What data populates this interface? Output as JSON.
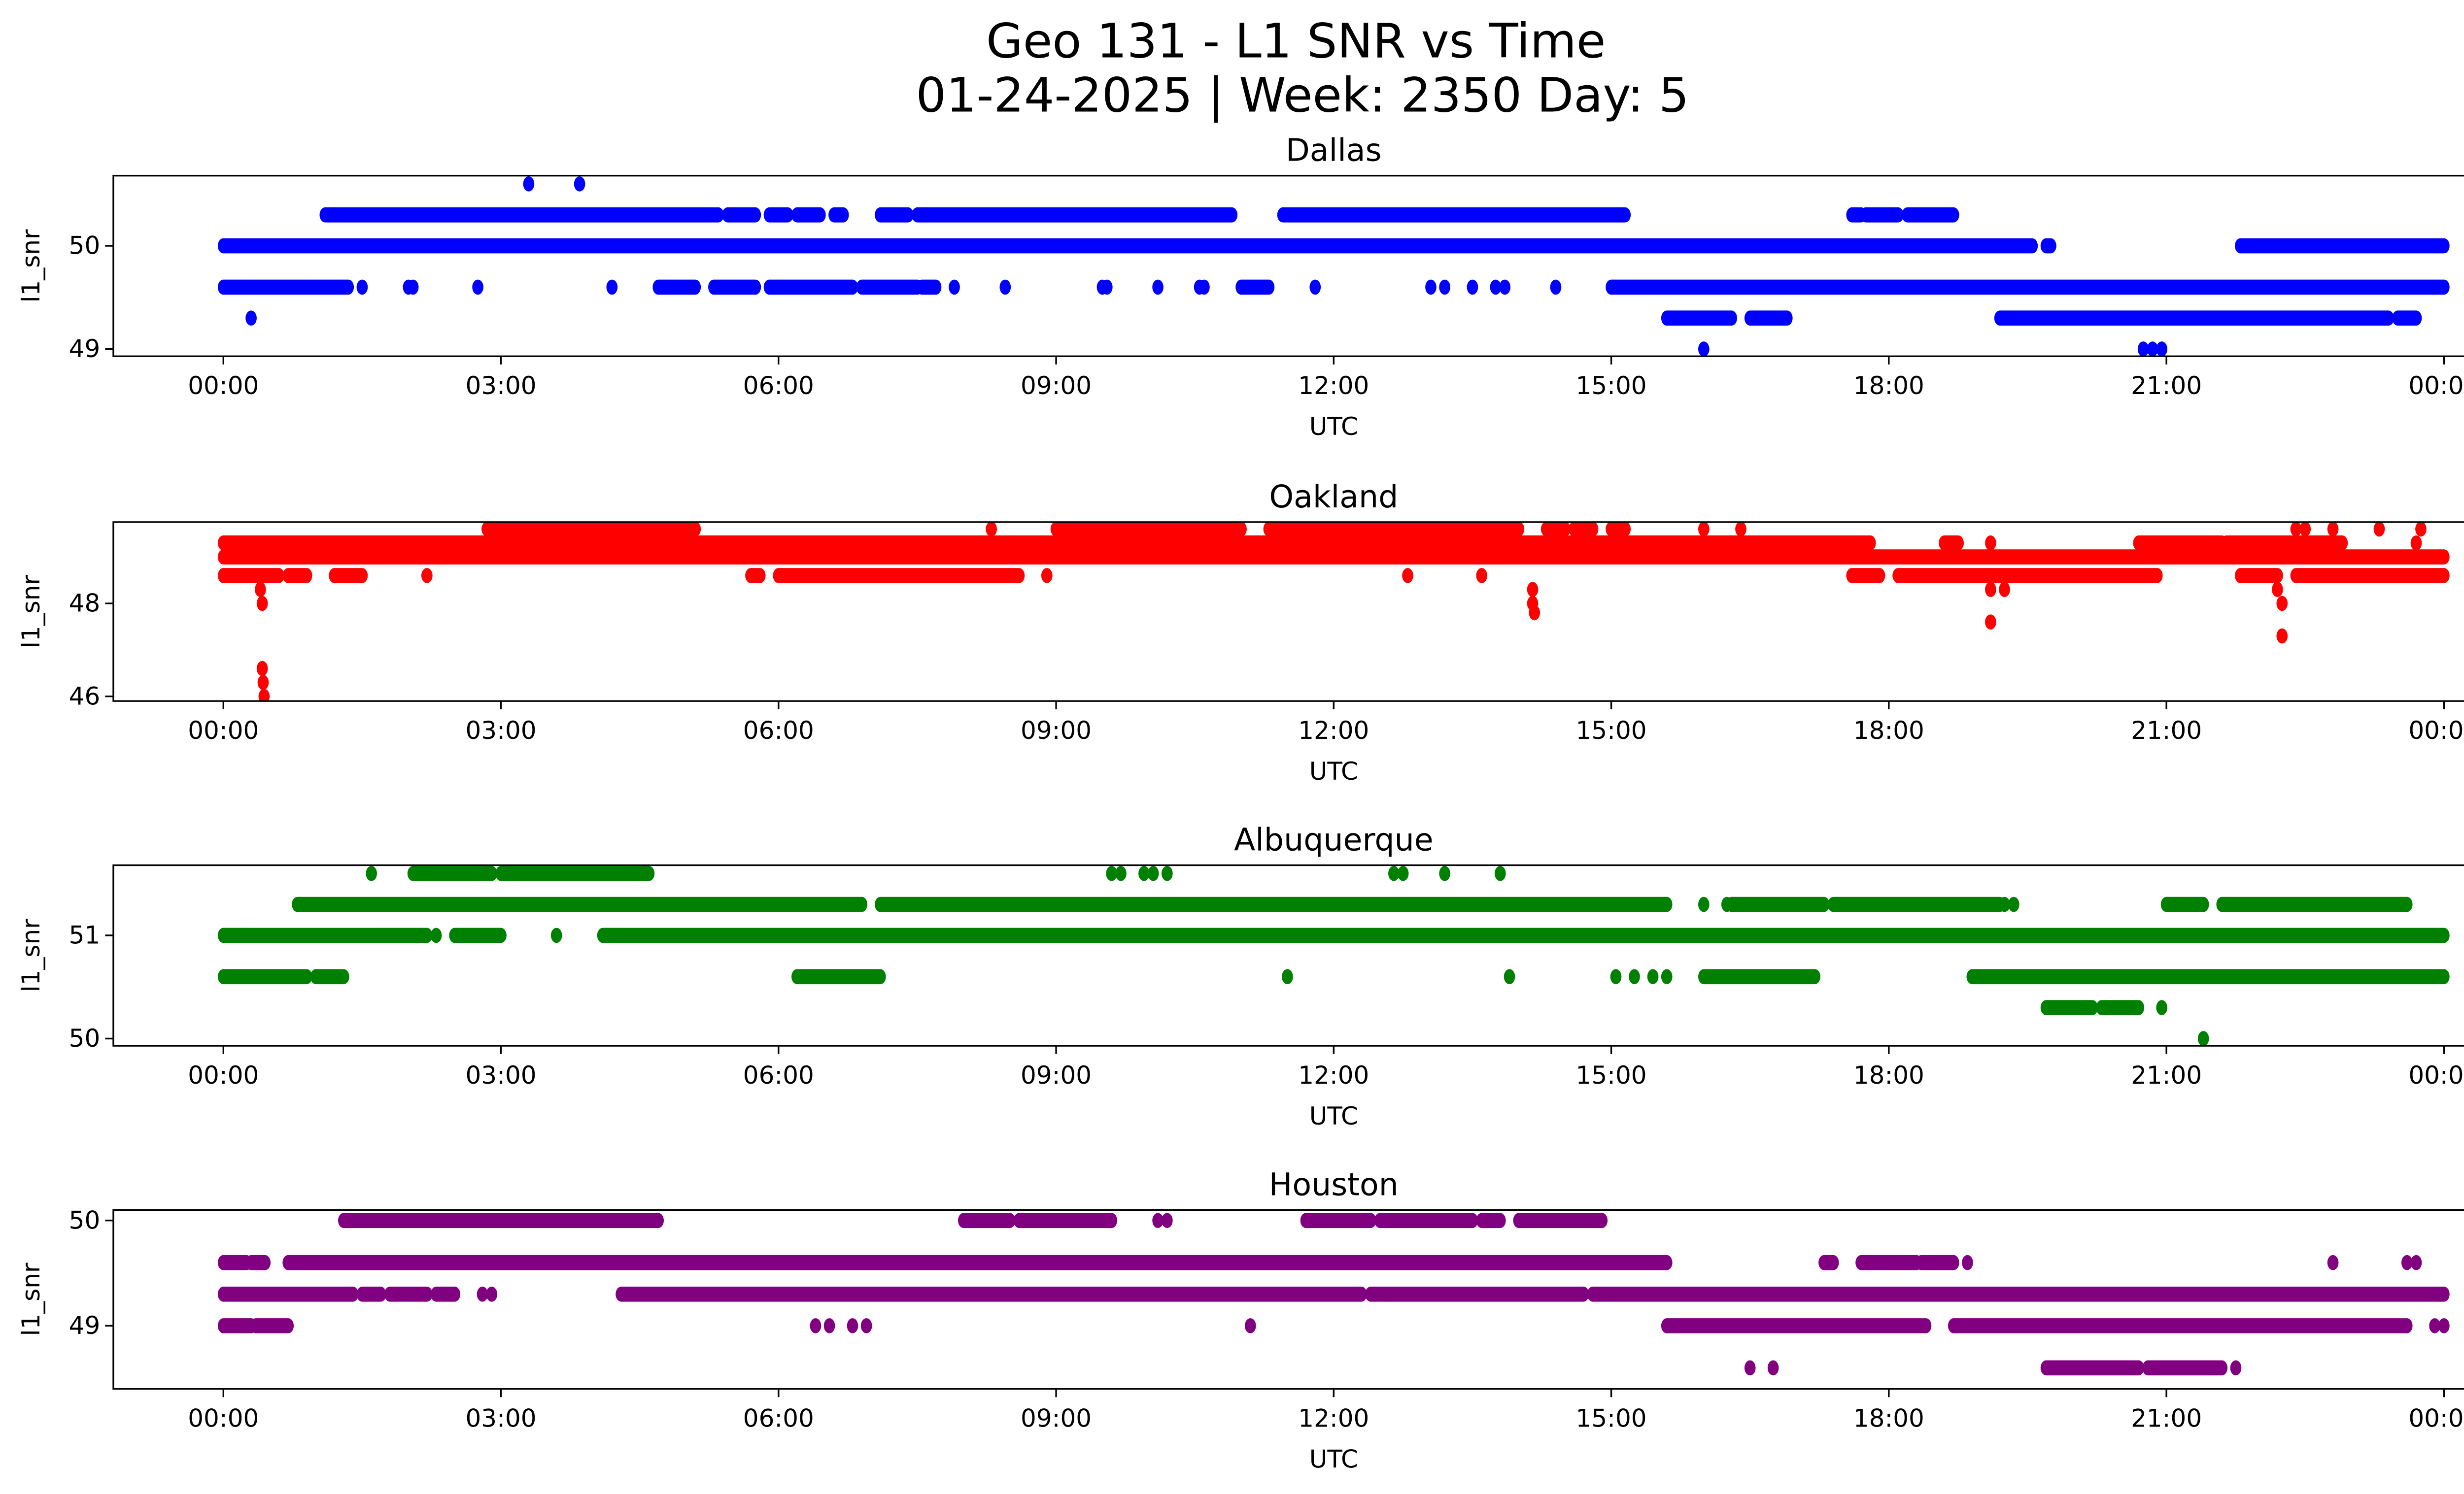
{
  "chart_data": {
    "type": "scatter",
    "title": "Geo 131 - L1 SNR vs Time",
    "subtitle": "01-24-2025 | Week: 2350 Day: 5",
    "x_tick_labels": [
      "00:00",
      "03:00",
      "06:00",
      "09:00",
      "12:00",
      "15:00",
      "18:00",
      "21:00",
      "00:00"
    ],
    "x_ticks_hours": [
      0,
      3,
      6,
      9,
      12,
      15,
      18,
      21,
      24
    ],
    "x_range_hours": [
      -1.2,
      25.2
    ],
    "grid": false,
    "legend": "none",
    "note": "Dense scatter; data approximated as runs of consecutive samples [start_hour, end_hour] at each quantized SNR level plus isolated points [hour, snr].",
    "panels": [
      {
        "name": "Dallas",
        "xlabel": "UTC",
        "ylabel": "l1_snr",
        "color": "#0000ff",
        "ylim": [
          48.93,
          50.68
        ],
        "y_ticks": [
          49,
          50
        ],
        "y_tick_labels": [
          "49",
          "50"
        ],
        "runs": [
          {
            "y": 50.6,
            "spans": []
          },
          {
            "y": 50.3,
            "spans": [
              [
                1.1,
                5.35
              ],
              [
                5.45,
                5.75
              ],
              [
                5.9,
                6.1
              ],
              [
                6.2,
                6.45
              ],
              [
                6.6,
                6.7
              ],
              [
                7.1,
                7.4
              ],
              [
                7.5,
                10.9
              ],
              [
                11.45,
                15.15
              ],
              [
                17.6,
                17.7
              ],
              [
                17.75,
                18.1
              ],
              [
                18.2,
                18.7
              ]
            ]
          },
          {
            "y": 50.0,
            "spans": [
              [
                0.0,
                19.55
              ],
              [
                19.7,
                19.75
              ],
              [
                21.8,
                24.0
              ]
            ]
          },
          {
            "y": 49.6,
            "spans": [
              [
                0.0,
                1.35
              ],
              [
                4.7,
                5.1
              ],
              [
                5.3,
                5.75
              ],
              [
                5.9,
                6.8
              ],
              [
                6.9,
                7.5
              ],
              [
                7.55,
                7.7
              ],
              [
                11.0,
                11.3
              ],
              [
                15.0,
                24.0
              ]
            ]
          },
          {
            "y": 49.3,
            "spans": [
              [
                15.6,
                16.3
              ],
              [
                16.5,
                16.9
              ],
              [
                19.2,
                23.4
              ],
              [
                23.5,
                23.7
              ]
            ]
          }
        ],
        "points": [
          [
            3.3,
            50.6
          ],
          [
            3.85,
            50.6
          ],
          [
            0.3,
            49.3
          ],
          [
            1.5,
            49.6
          ],
          [
            2.0,
            49.6
          ],
          [
            2.05,
            49.6
          ],
          [
            2.75,
            49.6
          ],
          [
            4.2,
            49.6
          ],
          [
            7.9,
            49.6
          ],
          [
            8.45,
            49.6
          ],
          [
            9.5,
            49.6
          ],
          [
            9.55,
            49.6
          ],
          [
            10.1,
            49.6
          ],
          [
            10.55,
            49.6
          ],
          [
            10.6,
            49.6
          ],
          [
            11.8,
            49.6
          ],
          [
            13.05,
            49.6
          ],
          [
            13.2,
            49.6
          ],
          [
            13.5,
            49.6
          ],
          [
            13.75,
            49.6
          ],
          [
            13.85,
            49.6
          ],
          [
            14.4,
            49.6
          ],
          [
            16.0,
            49.0
          ],
          [
            20.75,
            49.0
          ],
          [
            20.85,
            49.0
          ],
          [
            20.95,
            49.0
          ]
        ]
      },
      {
        "name": "Oakland",
        "xlabel": "UTC",
        "ylabel": "l1_snr",
        "color": "#ff0000",
        "ylim": [
          45.9,
          49.75
        ],
        "y_ticks": [
          46,
          48
        ],
        "y_tick_labels": [
          "46",
          "48"
        ],
        "runs": [
          {
            "y": 49.6,
            "spans": [
              [
                2.85,
                5.1
              ],
              [
                9.0,
                11.0
              ],
              [
                11.3,
                11.9
              ],
              [
                11.95,
                14.0
              ],
              [
                14.3,
                14.5
              ],
              [
                14.6,
                14.8
              ],
              [
                15.0,
                15.15
              ]
            ]
          },
          {
            "y": 49.3,
            "spans": [
              [
                0.0,
                17.8
              ],
              [
                18.6,
                18.75
              ],
              [
                20.7,
                21.6
              ],
              [
                21.65,
                22.9
              ]
            ]
          },
          {
            "y": 49.0,
            "spans": [
              [
                0.0,
                24.0
              ]
            ]
          },
          {
            "y": 48.6,
            "spans": [
              [
                0.0,
                0.6
              ],
              [
                0.7,
                0.9
              ],
              [
                1.2,
                1.5
              ],
              [
                5.7,
                5.8
              ],
              [
                6.0,
                8.6
              ],
              [
                17.6,
                17.9
              ],
              [
                18.1,
                20.9
              ],
              [
                21.8,
                22.2
              ],
              [
                22.4,
                24.0
              ]
            ]
          }
        ],
        "points": [
          [
            0.4,
            48.3
          ],
          [
            0.42,
            48.0
          ],
          [
            0.42,
            46.6
          ],
          [
            0.43,
            46.3
          ],
          [
            0.44,
            46.0
          ],
          [
            2.2,
            48.6
          ],
          [
            8.9,
            48.6
          ],
          [
            8.3,
            49.6
          ],
          [
            12.8,
            48.6
          ],
          [
            13.6,
            48.6
          ],
          [
            14.15,
            48.3
          ],
          [
            14.15,
            48.0
          ],
          [
            14.17,
            47.8
          ],
          [
            16.0,
            49.6
          ],
          [
            16.4,
            49.6
          ],
          [
            19.1,
            49.3
          ],
          [
            19.1,
            48.3
          ],
          [
            19.25,
            48.3
          ],
          [
            19.1,
            47.6
          ],
          [
            22.2,
            48.3
          ],
          [
            22.25,
            48.0
          ],
          [
            22.25,
            47.3
          ],
          [
            22.4,
            49.6
          ],
          [
            22.5,
            49.6
          ],
          [
            22.8,
            49.6
          ],
          [
            23.3,
            49.6
          ],
          [
            23.75,
            49.6
          ],
          [
            23.7,
            49.3
          ]
        ]
      },
      {
        "name": "Albuquerque",
        "xlabel": "UTC",
        "ylabel": "l1_snr",
        "color": "#008000",
        "ylim": [
          49.93,
          51.68
        ],
        "y_ticks": [
          50,
          51
        ],
        "y_tick_labels": [
          "50",
          "51"
        ],
        "runs": [
          {
            "y": 51.6,
            "spans": [
              [
                2.05,
                2.9
              ],
              [
                3.0,
                4.6
              ]
            ]
          },
          {
            "y": 51.3,
            "spans": [
              [
                0.8,
                6.9
              ],
              [
                7.1,
                15.6
              ],
              [
                16.3,
                17.3
              ],
              [
                17.4,
                19.2
              ],
              [
                21.0,
                21.4
              ],
              [
                21.6,
                23.6
              ]
            ]
          },
          {
            "y": 51.0,
            "spans": [
              [
                0.0,
                2.2
              ],
              [
                2.5,
                3.0
              ],
              [
                4.1,
                24.0
              ]
            ]
          },
          {
            "y": 50.6,
            "spans": [
              [
                0.0,
                0.9
              ],
              [
                1.0,
                1.3
              ],
              [
                6.2,
                7.1
              ],
              [
                16.0,
                17.2
              ],
              [
                18.9,
                24.0
              ]
            ]
          },
          {
            "y": 50.3,
            "spans": [
              [
                19.7,
                20.2
              ],
              [
                20.3,
                20.7
              ]
            ]
          }
        ],
        "points": [
          [
            1.6,
            51.6
          ],
          [
            9.6,
            51.6
          ],
          [
            9.7,
            51.6
          ],
          [
            9.95,
            51.6
          ],
          [
            10.05,
            51.6
          ],
          [
            10.2,
            51.6
          ],
          [
            12.65,
            51.6
          ],
          [
            12.75,
            51.6
          ],
          [
            13.2,
            51.6
          ],
          [
            13.8,
            51.6
          ],
          [
            2.3,
            51.0
          ],
          [
            3.6,
            51.0
          ],
          [
            11.5,
            50.6
          ],
          [
            13.9,
            50.6
          ],
          [
            15.05,
            50.6
          ],
          [
            15.25,
            50.6
          ],
          [
            15.45,
            50.6
          ],
          [
            15.6,
            50.6
          ],
          [
            16.0,
            51.3
          ],
          [
            16.25,
            51.3
          ],
          [
            19.25,
            51.3
          ],
          [
            19.35,
            51.3
          ],
          [
            20.95,
            50.3
          ],
          [
            21.4,
            50.0
          ]
        ]
      },
      {
        "name": "Houston",
        "xlabel": "UTC",
        "ylabel": "l1_snr",
        "color": "#800080",
        "ylim": [
          48.4,
          50.1
        ],
        "y_ticks": [
          49,
          50
        ],
        "y_tick_labels": [
          "49",
          "50"
        ],
        "runs": [
          {
            "y": 50.0,
            "spans": [
              [
                1.3,
                4.7
              ],
              [
                8.0,
                8.5
              ],
              [
                8.6,
                9.6
              ],
              [
                11.7,
                12.4
              ],
              [
                12.5,
                13.5
              ],
              [
                13.6,
                13.8
              ],
              [
                14.0,
                14.9
              ]
            ]
          },
          {
            "y": 49.6,
            "spans": [
              [
                0.0,
                0.25
              ],
              [
                0.3,
                0.45
              ],
              [
                0.7,
                15.6
              ],
              [
                17.3,
                17.4
              ],
              [
                17.7,
                18.3
              ],
              [
                18.35,
                18.7
              ]
            ]
          },
          {
            "y": 49.3,
            "spans": [
              [
                0.0,
                1.4
              ],
              [
                1.5,
                1.7
              ],
              [
                1.8,
                2.2
              ],
              [
                2.3,
                2.5
              ],
              [
                4.3,
                12.3
              ],
              [
                12.4,
                14.7
              ],
              [
                14.8,
                24.0
              ]
            ]
          },
          {
            "y": 49.0,
            "spans": [
              [
                0.0,
                0.3
              ],
              [
                0.35,
                0.7
              ],
              [
                15.6,
                18.4
              ],
              [
                18.7,
                23.6
              ]
            ]
          },
          {
            "y": 48.6,
            "spans": [
              [
                19.7,
                20.7
              ],
              [
                20.8,
                21.6
              ]
            ]
          }
        ],
        "points": [
          [
            2.8,
            49.3
          ],
          [
            2.9,
            49.3
          ],
          [
            6.4,
            49.0
          ],
          [
            6.55,
            49.0
          ],
          [
            6.8,
            49.0
          ],
          [
            6.95,
            49.0
          ],
          [
            11.1,
            49.0
          ],
          [
            10.1,
            50.0
          ],
          [
            10.2,
            50.0
          ],
          [
            14.2,
            50.0
          ],
          [
            18.85,
            49.6
          ],
          [
            22.8,
            49.6
          ],
          [
            23.6,
            49.6
          ],
          [
            23.7,
            49.6
          ],
          [
            16.5,
            48.6
          ],
          [
            16.75,
            48.6
          ],
          [
            21.75,
            48.6
          ],
          [
            12.6,
            49.3
          ],
          [
            23.9,
            49.0
          ],
          [
            24.0,
            49.0
          ]
        ]
      }
    ]
  }
}
